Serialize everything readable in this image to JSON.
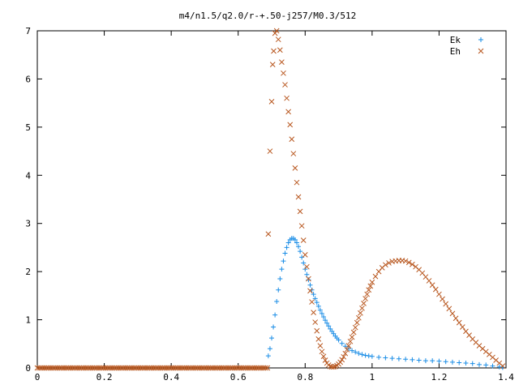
{
  "chart_data": {
    "type": "scatter",
    "title": "m4/n1.5/q2.0/r-+.50-j257/M0.3/512",
    "xlabel": "",
    "ylabel": "",
    "xlim": [
      0,
      1.4
    ],
    "ylim": [
      0,
      7
    ],
    "x_ticks": [
      "0",
      "0.2",
      "0.4",
      "0.6",
      "0.8",
      "1",
      "1.2",
      "1.4"
    ],
    "y_ticks": [
      "0",
      "1",
      "2",
      "3",
      "4",
      "5",
      "6",
      "7"
    ],
    "legend_position": "top-right",
    "grid": false,
    "series": [
      {
        "name": "Ek",
        "marker": "plus",
        "color": "#1a8de6",
        "points": [
          [
            0.69,
            0.25
          ],
          [
            0.695,
            0.4
          ],
          [
            0.7,
            0.62
          ],
          [
            0.705,
            0.85
          ],
          [
            0.71,
            1.1
          ],
          [
            0.715,
            1.38
          ],
          [
            0.72,
            1.62
          ],
          [
            0.725,
            1.85
          ],
          [
            0.73,
            2.05
          ],
          [
            0.735,
            2.22
          ],
          [
            0.74,
            2.38
          ],
          [
            0.745,
            2.5
          ],
          [
            0.75,
            2.6
          ],
          [
            0.755,
            2.66
          ],
          [
            0.76,
            2.69
          ],
          [
            0.765,
            2.69
          ],
          [
            0.77,
            2.66
          ],
          [
            0.775,
            2.6
          ],
          [
            0.78,
            2.52
          ],
          [
            0.785,
            2.42
          ],
          [
            0.79,
            2.3
          ],
          [
            0.795,
            2.18
          ],
          [
            0.8,
            2.05
          ],
          [
            0.805,
            1.94
          ],
          [
            0.81,
            1.83
          ],
          [
            0.815,
            1.72
          ],
          [
            0.82,
            1.62
          ],
          [
            0.825,
            1.53
          ],
          [
            0.83,
            1.44
          ],
          [
            0.835,
            1.36
          ],
          [
            0.84,
            1.28
          ],
          [
            0.845,
            1.2
          ],
          [
            0.85,
            1.13
          ],
          [
            0.855,
            1.06
          ],
          [
            0.86,
            0.99
          ],
          [
            0.865,
            0.93
          ],
          [
            0.87,
            0.87
          ],
          [
            0.875,
            0.81
          ],
          [
            0.88,
            0.76
          ],
          [
            0.885,
            0.71
          ],
          [
            0.89,
            0.66
          ],
          [
            0.895,
            0.62
          ],
          [
            0.9,
            0.58
          ],
          [
            0.91,
            0.51
          ],
          [
            0.92,
            0.45
          ],
          [
            0.93,
            0.4
          ],
          [
            0.94,
            0.36
          ],
          [
            0.95,
            0.33
          ],
          [
            0.96,
            0.3
          ],
          [
            0.97,
            0.28
          ],
          [
            0.98,
            0.26
          ],
          [
            0.99,
            0.25
          ],
          [
            1.0,
            0.24
          ],
          [
            1.02,
            0.22
          ],
          [
            1.04,
            0.21
          ],
          [
            1.06,
            0.2
          ],
          [
            1.08,
            0.19
          ],
          [
            1.1,
            0.18
          ],
          [
            1.12,
            0.17
          ],
          [
            1.14,
            0.16
          ],
          [
            1.16,
            0.15
          ],
          [
            1.18,
            0.15
          ],
          [
            1.2,
            0.14
          ],
          [
            1.22,
            0.13
          ],
          [
            1.24,
            0.12
          ],
          [
            1.26,
            0.11
          ],
          [
            1.28,
            0.1
          ],
          [
            1.3,
            0.09
          ],
          [
            1.32,
            0.07
          ],
          [
            1.34,
            0.06
          ],
          [
            1.36,
            0.04
          ],
          [
            1.38,
            0.02
          ],
          [
            1.39,
            0.01
          ]
        ]
      },
      {
        "name": "Eh",
        "marker": "cross",
        "color": "#b8571f",
        "points": [
          [
            0.69,
            2.78
          ],
          [
            0.695,
            4.5
          ],
          [
            0.7,
            5.53
          ],
          [
            0.703,
            6.3
          ],
          [
            0.706,
            6.58
          ],
          [
            0.71,
            6.95
          ],
          [
            0.715,
            7.0
          ],
          [
            0.72,
            6.82
          ],
          [
            0.725,
            6.6
          ],
          [
            0.73,
            6.35
          ],
          [
            0.735,
            6.12
          ],
          [
            0.74,
            5.88
          ],
          [
            0.745,
            5.6
          ],
          [
            0.75,
            5.32
          ],
          [
            0.755,
            5.05
          ],
          [
            0.76,
            4.75
          ],
          [
            0.765,
            4.45
          ],
          [
            0.77,
            4.15
          ],
          [
            0.775,
            3.85
          ],
          [
            0.78,
            3.55
          ],
          [
            0.785,
            3.25
          ],
          [
            0.79,
            2.95
          ],
          [
            0.795,
            2.65
          ],
          [
            0.8,
            2.35
          ],
          [
            0.805,
            2.1
          ],
          [
            0.81,
            1.85
          ],
          [
            0.815,
            1.6
          ],
          [
            0.82,
            1.37
          ],
          [
            0.825,
            1.15
          ],
          [
            0.83,
            0.95
          ],
          [
            0.835,
            0.77
          ],
          [
            0.84,
            0.6
          ],
          [
            0.845,
            0.46
          ],
          [
            0.85,
            0.34
          ],
          [
            0.855,
            0.24
          ],
          [
            0.86,
            0.16
          ],
          [
            0.865,
            0.1
          ],
          [
            0.87,
            0.06
          ],
          [
            0.875,
            0.03
          ],
          [
            0.88,
            0.02
          ],
          [
            0.885,
            0.02
          ],
          [
            0.89,
            0.03
          ],
          [
            0.895,
            0.05
          ],
          [
            0.9,
            0.08
          ],
          [
            0.905,
            0.12
          ],
          [
            0.91,
            0.17
          ],
          [
            0.915,
            0.23
          ],
          [
            0.92,
            0.3
          ],
          [
            0.925,
            0.38
          ],
          [
            0.93,
            0.46
          ],
          [
            0.935,
            0.55
          ],
          [
            0.94,
            0.64
          ],
          [
            0.945,
            0.74
          ],
          [
            0.95,
            0.84
          ],
          [
            0.955,
            0.94
          ],
          [
            0.96,
            1.04
          ],
          [
            0.965,
            1.14
          ],
          [
            0.97,
            1.24
          ],
          [
            0.975,
            1.34
          ],
          [
            0.98,
            1.44
          ],
          [
            0.985,
            1.53
          ],
          [
            0.99,
            1.62
          ],
          [
            0.995,
            1.7
          ],
          [
            1.0,
            1.78
          ],
          [
            1.01,
            1.9
          ],
          [
            1.02,
            2.0
          ],
          [
            1.03,
            2.08
          ],
          [
            1.04,
            2.14
          ],
          [
            1.05,
            2.18
          ],
          [
            1.06,
            2.21
          ],
          [
            1.07,
            2.22
          ],
          [
            1.08,
            2.23
          ],
          [
            1.09,
            2.23
          ],
          [
            1.1,
            2.22
          ],
          [
            1.11,
            2.19
          ],
          [
            1.12,
            2.15
          ],
          [
            1.13,
            2.1
          ],
          [
            1.14,
            2.04
          ],
          [
            1.15,
            1.97
          ],
          [
            1.16,
            1.89
          ],
          [
            1.17,
            1.81
          ],
          [
            1.18,
            1.72
          ],
          [
            1.19,
            1.63
          ],
          [
            1.2,
            1.53
          ],
          [
            1.21,
            1.43
          ],
          [
            1.22,
            1.33
          ],
          [
            1.23,
            1.23
          ],
          [
            1.24,
            1.13
          ],
          [
            1.25,
            1.03
          ],
          [
            1.26,
            0.94
          ],
          [
            1.27,
            0.85
          ],
          [
            1.28,
            0.76
          ],
          [
            1.29,
            0.68
          ],
          [
            1.3,
            0.6
          ],
          [
            1.31,
            0.53
          ],
          [
            1.32,
            0.46
          ],
          [
            1.33,
            0.4
          ],
          [
            1.34,
            0.34
          ],
          [
            1.35,
            0.28
          ],
          [
            1.36,
            0.22
          ],
          [
            1.37,
            0.16
          ],
          [
            1.38,
            0.1
          ],
          [
            1.39,
            0.04
          ]
        ],
        "flat_segment": {
          "x_from": 0.0,
          "x_to": 0.69,
          "y": 0
        }
      }
    ]
  }
}
